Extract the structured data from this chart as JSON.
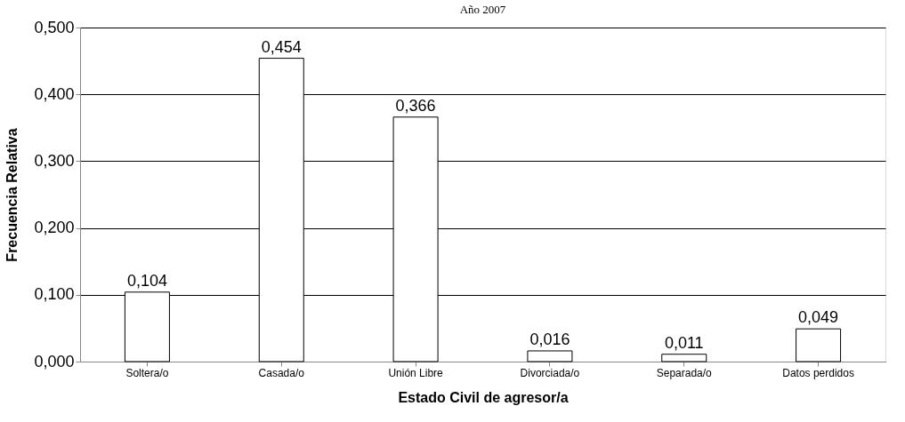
{
  "chart_data": {
    "type": "bar",
    "title": "Año 2007",
    "xlabel": "Estado Civil de agresor/a",
    "ylabel": "Frecuencia Relativa",
    "categories": [
      "Soltera/o",
      "Casada/o",
      "Unión Libre",
      "Divorciada/o",
      "Separada/o",
      "Datos perdidos"
    ],
    "values": [
      0.104,
      0.454,
      0.366,
      0.016,
      0.011,
      0.049
    ],
    "value_labels": [
      "0,104",
      "0,454",
      "0,366",
      "0,016",
      "0,011",
      "0,049"
    ],
    "color": "#ffffff",
    "ylim": [
      0,
      0.5
    ],
    "yticks": [
      {
        "value": 0,
        "label": "0,000"
      },
      {
        "value": 0.1,
        "label": "0,100"
      },
      {
        "value": 0.2,
        "label": "0,200"
      },
      {
        "value": 0.3,
        "label": "0,300"
      },
      {
        "value": 0.4,
        "label": "0,400"
      },
      {
        "value": 0.5,
        "label": "0,500"
      }
    ],
    "grid": "y"
  }
}
